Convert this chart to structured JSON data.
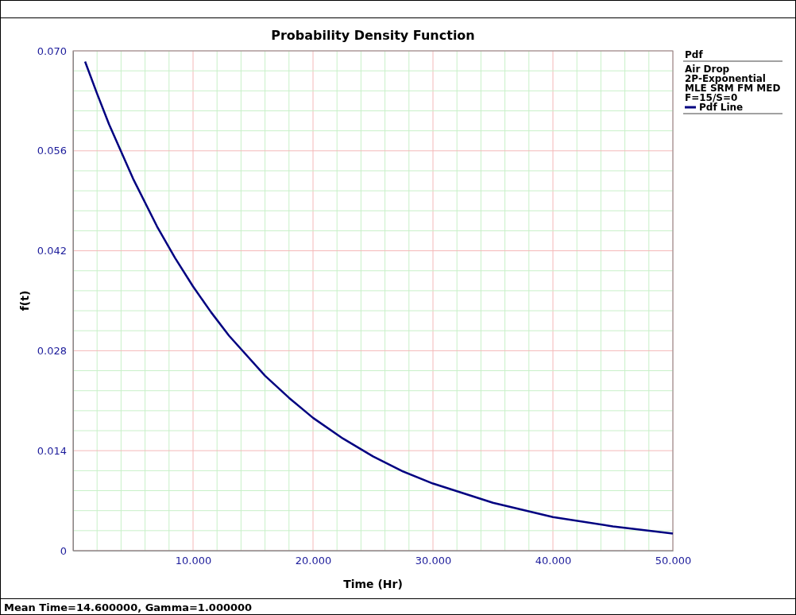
{
  "chart_data": {
    "type": "line",
    "title": "Probability Density Function",
    "xlabel": "Time (Hr)",
    "ylabel": "f(t)",
    "legend_title": "Pdf",
    "annotations": [
      "Air Drop",
      "2P-Exponential",
      "MLE SRM FM MED",
      "F=15/S=0",
      "Mean Time=14.600000, Gamma=1.000000"
    ],
    "series": [
      {
        "name": "Pdf Line",
        "color": "#000080",
        "x": [
          1,
          2,
          3,
          5,
          7,
          8.5,
          10,
          11.5,
          13,
          16,
          18,
          20,
          22.5,
          25,
          27.5,
          30,
          35,
          40,
          45,
          50
        ],
        "values": [
          0.0685,
          0.064,
          0.0597,
          0.0521,
          0.0454,
          0.041,
          0.037,
          0.0334,
          0.0301,
          0.0245,
          0.0214,
          0.0186,
          0.0157,
          0.0132,
          0.0111,
          0.0094,
          0.0067,
          0.0047,
          0.0034,
          0.0024
        ]
      }
    ],
    "xlim": [
      0,
      50
    ],
    "xticks": [
      {
        "value": 0,
        "label": null
      },
      {
        "value": 10,
        "label": "10.000"
      },
      {
        "value": 20,
        "label": "20.000"
      },
      {
        "value": 30,
        "label": "30.000"
      },
      {
        "value": 40,
        "label": "40.000"
      },
      {
        "value": 50,
        "label": "50.000"
      }
    ],
    "ylim": [
      0,
      0.07
    ],
    "yticks": [
      0,
      {
        "value": 0.014,
        "label": "0.014"
      },
      {
        "value": 0.028,
        "label": "0.028"
      },
      {
        "value": 0.042,
        "label": "0.042"
      },
      {
        "value": 0.056,
        "label": "0.056"
      },
      {
        "value": 0.07,
        "label": "0.070"
      }
    ],
    "grid": true,
    "legend": "top right",
    "marker": "none",
    "line_style": "solid"
  }
}
